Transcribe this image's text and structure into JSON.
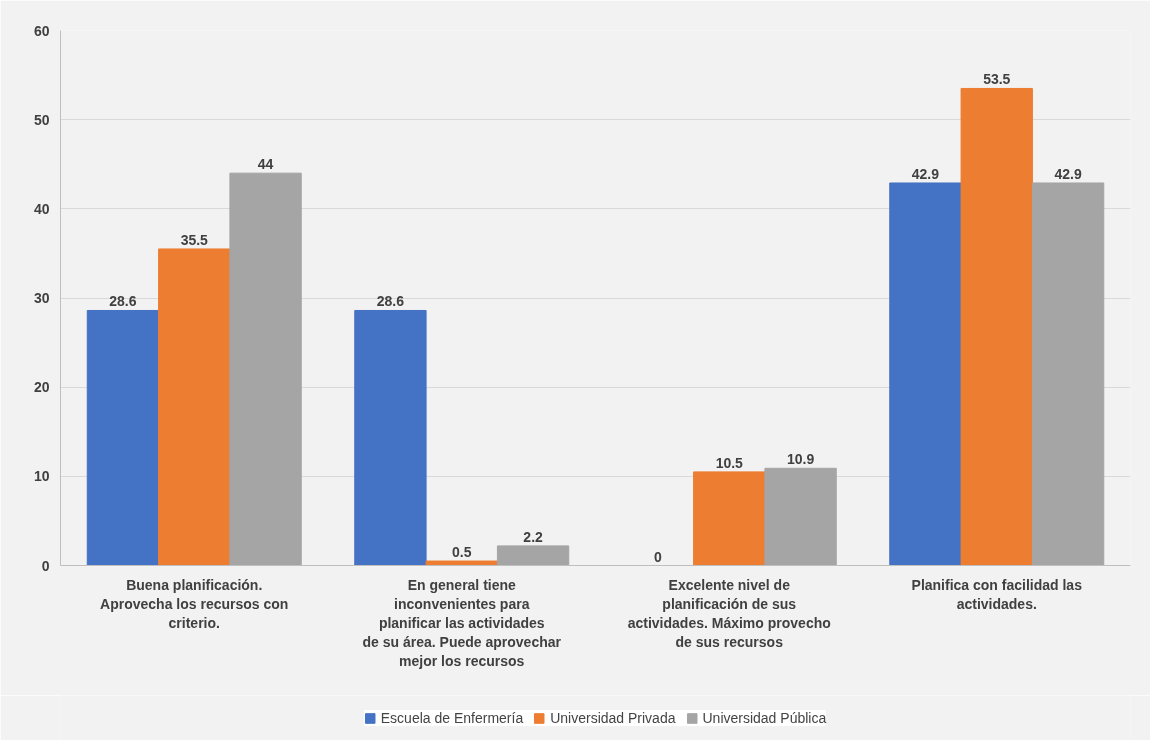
{
  "chart_data": {
    "type": "bar",
    "categories": [
      "Buena planificación. Aprovecha los recursos con criterio.",
      "En general tiene inconvenientes para planificar las actividades de su área. Puede aprovechar mejor los recursos",
      "Excelente nivel de planificación de sus actividades. Máximo provecho de sus recursos",
      "Planifica con facilidad las actividades."
    ],
    "series": [
      {
        "name": "Escuela de Enfermería",
        "color": "#4472c4",
        "values": [
          28.6,
          28.6,
          0,
          42.9
        ]
      },
      {
        "name": "Universidad Privada",
        "color": "#ed7d31",
        "values": [
          35.5,
          0.5,
          10.5,
          53.5
        ]
      },
      {
        "name": "Universidad Pública",
        "color": "#a5a5a5",
        "values": [
          44,
          2.2,
          10.9,
          42.9
        ]
      }
    ],
    "ylim": [
      0,
      60
    ],
    "yticks": [
      0,
      10,
      20,
      30,
      40,
      50,
      60
    ],
    "grid": "y",
    "legend": "bottom",
    "data_labels": true
  }
}
